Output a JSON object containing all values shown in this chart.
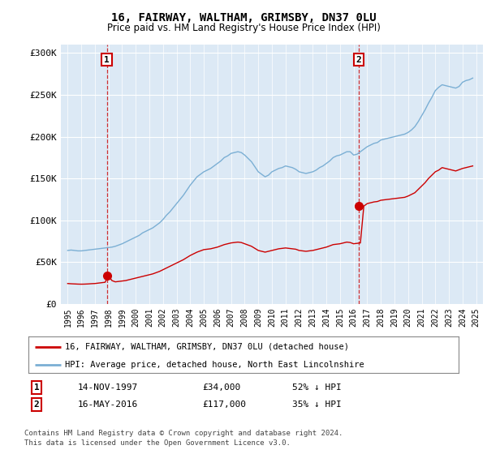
{
  "title": "16, FAIRWAY, WALTHAM, GRIMSBY, DN37 0LU",
  "subtitle": "Price paid vs. HM Land Registry's House Price Index (HPI)",
  "legend_line1": "16, FAIRWAY, WALTHAM, GRIMSBY, DN37 0LU (detached house)",
  "legend_line2": "HPI: Average price, detached house, North East Lincolnshire",
  "footer": "Contains HM Land Registry data © Crown copyright and database right 2024.\nThis data is licensed under the Open Government Licence v3.0.",
  "sale1_date": "14-NOV-1997",
  "sale1_price": 34000,
  "sale1_label": "52% ↓ HPI",
  "sale2_date": "16-MAY-2016",
  "sale2_price": 117000,
  "sale2_label": "35% ↓ HPI",
  "sale1_x": 1997.87,
  "sale2_x": 2016.37,
  "red_color": "#cc0000",
  "blue_color": "#7bafd4",
  "background_color": "#dce9f5",
  "ylim": [
    0,
    310000
  ],
  "xlim": [
    1994.5,
    2025.5
  ],
  "hpi_years": [
    1995.0,
    1995.25,
    1995.5,
    1995.75,
    1996.0,
    1996.25,
    1996.5,
    1996.75,
    1997.0,
    1997.25,
    1997.5,
    1997.75,
    1998.0,
    1998.25,
    1998.5,
    1998.75,
    1999.0,
    1999.25,
    1999.5,
    1999.75,
    2000.0,
    2000.25,
    2000.5,
    2000.75,
    2001.0,
    2001.25,
    2001.5,
    2001.75,
    2002.0,
    2002.25,
    2002.5,
    2002.75,
    2003.0,
    2003.25,
    2003.5,
    2003.75,
    2004.0,
    2004.25,
    2004.5,
    2004.75,
    2005.0,
    2005.25,
    2005.5,
    2005.75,
    2006.0,
    2006.25,
    2006.5,
    2006.75,
    2007.0,
    2007.25,
    2007.5,
    2007.75,
    2008.0,
    2008.25,
    2008.5,
    2008.75,
    2009.0,
    2009.25,
    2009.5,
    2009.75,
    2010.0,
    2010.25,
    2010.5,
    2010.75,
    2011.0,
    2011.25,
    2011.5,
    2011.75,
    2012.0,
    2012.25,
    2012.5,
    2012.75,
    2013.0,
    2013.25,
    2013.5,
    2013.75,
    2014.0,
    2014.25,
    2014.5,
    2014.75,
    2015.0,
    2015.25,
    2015.5,
    2015.75,
    2016.0,
    2016.25,
    2016.5,
    2016.75,
    2017.0,
    2017.25,
    2017.5,
    2017.75,
    2018.0,
    2018.25,
    2018.5,
    2018.75,
    2019.0,
    2019.25,
    2019.5,
    2019.75,
    2020.0,
    2020.25,
    2020.5,
    2020.75,
    2021.0,
    2021.25,
    2021.5,
    2021.75,
    2022.0,
    2022.25,
    2022.5,
    2022.75,
    2023.0,
    2023.25,
    2023.5,
    2023.75,
    2024.0,
    2024.25,
    2024.5,
    2024.75
  ],
  "hpi_values": [
    64000,
    64500,
    64000,
    63500,
    63500,
    64000,
    64500,
    65000,
    65500,
    66000,
    66500,
    67000,
    67500,
    68000,
    69000,
    70500,
    72000,
    74000,
    76000,
    78000,
    80000,
    82000,
    85000,
    87000,
    89000,
    91000,
    94000,
    97000,
    101000,
    106000,
    110000,
    115000,
    120000,
    125000,
    130000,
    136000,
    142000,
    147000,
    152000,
    155000,
    158000,
    160000,
    162000,
    165000,
    168000,
    171000,
    175000,
    177000,
    180000,
    181000,
    182000,
    181000,
    178000,
    174000,
    170000,
    164000,
    158000,
    155000,
    152000,
    154000,
    158000,
    160000,
    162000,
    163000,
    165000,
    164000,
    163000,
    161000,
    158000,
    157000,
    156000,
    157000,
    158000,
    160000,
    163000,
    165000,
    168000,
    171000,
    175000,
    177000,
    178000,
    180000,
    182000,
    182000,
    178000,
    179000,
    182000,
    185000,
    188000,
    190000,
    192000,
    193000,
    196000,
    197000,
    198000,
    199000,
    200000,
    201000,
    202000,
    203000,
    205000,
    208000,
    212000,
    218000,
    225000,
    232000,
    240000,
    247000,
    255000,
    259000,
    262000,
    261000,
    260000,
    259000,
    258000,
    260000,
    265000,
    267000,
    268000,
    270000
  ],
  "prop_years": [
    1995.0,
    1995.25,
    1995.5,
    1995.75,
    1996.0,
    1996.25,
    1996.5,
    1996.75,
    1997.0,
    1997.25,
    1997.5,
    1997.75,
    1998.0,
    1998.25,
    1998.5,
    1998.75,
    1999.0,
    1999.25,
    1999.5,
    1999.75,
    2000.0,
    2000.25,
    2000.5,
    2000.75,
    2001.0,
    2001.25,
    2001.5,
    2001.75,
    2002.0,
    2002.25,
    2002.5,
    2002.75,
    2003.0,
    2003.25,
    2003.5,
    2003.75,
    2004.0,
    2004.25,
    2004.5,
    2004.75,
    2005.0,
    2005.25,
    2005.5,
    2005.75,
    2006.0,
    2006.25,
    2006.5,
    2006.75,
    2007.0,
    2007.25,
    2007.5,
    2007.75,
    2008.0,
    2008.25,
    2008.5,
    2008.75,
    2009.0,
    2009.25,
    2009.5,
    2009.75,
    2010.0,
    2010.25,
    2010.5,
    2010.75,
    2011.0,
    2011.25,
    2011.5,
    2011.75,
    2012.0,
    2012.25,
    2012.5,
    2012.75,
    2013.0,
    2013.25,
    2013.5,
    2013.75,
    2014.0,
    2014.25,
    2014.5,
    2014.75,
    2015.0,
    2015.25,
    2015.5,
    2015.75,
    2016.0,
    2016.25,
    2016.5,
    2016.75,
    2017.0,
    2017.25,
    2017.5,
    2017.75,
    2018.0,
    2018.25,
    2018.5,
    2018.75,
    2019.0,
    2019.25,
    2019.5,
    2019.75,
    2020.0,
    2020.25,
    2020.5,
    2020.75,
    2021.0,
    2021.25,
    2021.5,
    2021.75,
    2022.0,
    2022.25,
    2022.5,
    2022.75,
    2023.0,
    2023.25,
    2023.5,
    2023.75,
    2024.0,
    2024.25,
    2024.5,
    2024.75
  ],
  "prop_values": [
    24500,
    24200,
    24000,
    23800,
    23700,
    23800,
    24000,
    24300,
    24500,
    25000,
    25500,
    26000,
    34000,
    28000,
    26500,
    27000,
    27500,
    28000,
    29000,
    30000,
    31000,
    32000,
    33000,
    34000,
    35000,
    36000,
    37500,
    39000,
    41000,
    43000,
    45000,
    47000,
    49000,
    51000,
    53000,
    55500,
    58000,
    60000,
    62000,
    63500,
    65000,
    65500,
    66000,
    67000,
    68000,
    69500,
    71000,
    72000,
    73000,
    73500,
    74000,
    73500,
    72000,
    70500,
    69000,
    66500,
    64000,
    63000,
    62000,
    63000,
    64000,
    65000,
    66000,
    66500,
    67000,
    66500,
    66000,
    65500,
    64000,
    63500,
    63000,
    63500,
    64000,
    65000,
    66000,
    67000,
    68000,
    69500,
    71000,
    71500,
    72000,
    73000,
    74000,
    73500,
    72000,
    72500,
    73000,
    117000,
    120000,
    121000,
    122000,
    122500,
    124000,
    124500,
    125000,
    125500,
    126000,
    126500,
    127000,
    127500,
    129000,
    131000,
    133000,
    137000,
    141000,
    145000,
    150000,
    154000,
    158000,
    160000,
    163000,
    162000,
    161000,
    160000,
    159000,
    160500,
    162000,
    163000,
    164000,
    165000
  ]
}
